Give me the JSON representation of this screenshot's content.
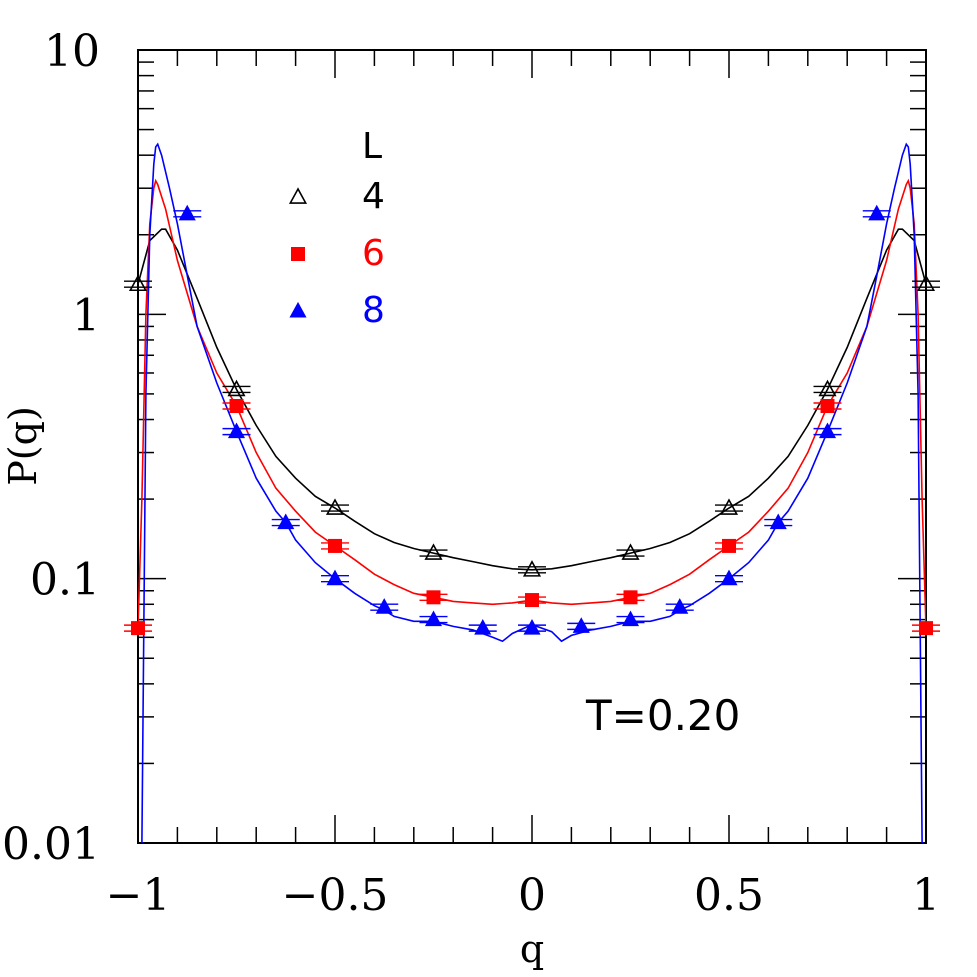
{
  "chart_data": {
    "type": "line",
    "title": "",
    "xlabel": "q",
    "ylabel": "P(q)",
    "xlim": [
      -1,
      1
    ],
    "ylim": [
      0.01,
      10
    ],
    "yscale": "log",
    "x_ticks": [
      {
        "value": -1,
        "label": "−1"
      },
      {
        "value": -0.5,
        "label": "−0.5"
      },
      {
        "value": 0,
        "label": "0"
      },
      {
        "value": 0.5,
        "label": "0.5"
      },
      {
        "value": 1,
        "label": "1"
      }
    ],
    "y_ticks": [
      {
        "value": 0.01,
        "label": "0.01"
      },
      {
        "value": 0.1,
        "label": "0.1"
      },
      {
        "value": 1,
        "label": "1"
      },
      {
        "value": 10,
        "label": "10"
      }
    ],
    "legend": {
      "title": "L",
      "placement": "top-left"
    },
    "annotation": "T=0.20",
    "series": [
      {
        "name": "4",
        "color": "#000000",
        "marker": "open-triangle",
        "points": [
          {
            "x": -1,
            "y": 1.3
          },
          {
            "x": -0.75,
            "y": 0.52
          },
          {
            "x": -0.5,
            "y": 0.185
          },
          {
            "x": -0.25,
            "y": 0.125
          },
          {
            "x": 0,
            "y": 0.108
          },
          {
            "x": 0.25,
            "y": 0.125
          },
          {
            "x": 0.5,
            "y": 0.185
          },
          {
            "x": 0.75,
            "y": 0.52
          },
          {
            "x": 1,
            "y": 1.3
          }
        ],
        "curve": [
          [
            -1,
            1.3
          ],
          [
            -0.97,
            1.9
          ],
          [
            -0.94,
            2.1
          ],
          [
            -0.93,
            2.1
          ],
          [
            -0.9,
            1.75
          ],
          [
            -0.85,
            1.15
          ],
          [
            -0.8,
            0.75
          ],
          [
            -0.75,
            0.52
          ],
          [
            -0.7,
            0.38
          ],
          [
            -0.65,
            0.29
          ],
          [
            -0.6,
            0.24
          ],
          [
            -0.55,
            0.205
          ],
          [
            -0.5,
            0.185
          ],
          [
            -0.45,
            0.165
          ],
          [
            -0.4,
            0.148
          ],
          [
            -0.35,
            0.137
          ],
          [
            -0.3,
            0.13
          ],
          [
            -0.25,
            0.125
          ],
          [
            -0.2,
            0.12
          ],
          [
            -0.15,
            0.116
          ],
          [
            -0.1,
            0.112
          ],
          [
            -0.05,
            0.109
          ],
          [
            0,
            0.108
          ],
          [
            0.05,
            0.109
          ],
          [
            0.1,
            0.112
          ],
          [
            0.15,
            0.116
          ],
          [
            0.2,
            0.12
          ],
          [
            0.25,
            0.125
          ],
          [
            0.3,
            0.13
          ],
          [
            0.35,
            0.137
          ],
          [
            0.4,
            0.148
          ],
          [
            0.45,
            0.165
          ],
          [
            0.5,
            0.185
          ],
          [
            0.55,
            0.205
          ],
          [
            0.6,
            0.24
          ],
          [
            0.65,
            0.29
          ],
          [
            0.7,
            0.38
          ],
          [
            0.75,
            0.52
          ],
          [
            0.8,
            0.75
          ],
          [
            0.85,
            1.15
          ],
          [
            0.9,
            1.75
          ],
          [
            0.93,
            2.1
          ],
          [
            0.94,
            2.1
          ],
          [
            0.97,
            1.9
          ],
          [
            1,
            1.3
          ]
        ]
      },
      {
        "name": "6",
        "color": "#ff0000",
        "marker": "filled-square",
        "points": [
          {
            "x": -1,
            "y": 0.065
          },
          {
            "x": -0.75,
            "y": 0.45
          },
          {
            "x": -0.5,
            "y": 0.133
          },
          {
            "x": -0.25,
            "y": 0.085
          },
          {
            "x": 0,
            "y": 0.083
          },
          {
            "x": 0.25,
            "y": 0.085
          },
          {
            "x": 0.5,
            "y": 0.133
          },
          {
            "x": 0.75,
            "y": 0.45
          },
          {
            "x": 1,
            "y": 0.065
          }
        ],
        "curve": [
          [
            -1,
            0.065
          ],
          [
            -0.99,
            0.2
          ],
          [
            -0.98,
            1.0
          ],
          [
            -0.97,
            2.2
          ],
          [
            -0.96,
            3.0
          ],
          [
            -0.955,
            3.2
          ],
          [
            -0.95,
            3.1
          ],
          [
            -0.93,
            2.5
          ],
          [
            -0.9,
            1.6
          ],
          [
            -0.85,
            0.9
          ],
          [
            -0.8,
            0.6
          ],
          [
            -0.75,
            0.45
          ],
          [
            -0.7,
            0.3
          ],
          [
            -0.65,
            0.22
          ],
          [
            -0.6,
            0.18
          ],
          [
            -0.55,
            0.15
          ],
          [
            -0.5,
            0.133
          ],
          [
            -0.45,
            0.118
          ],
          [
            -0.4,
            0.104
          ],
          [
            -0.35,
            0.095
          ],
          [
            -0.3,
            0.088
          ],
          [
            -0.25,
            0.085
          ],
          [
            -0.2,
            0.082
          ],
          [
            -0.15,
            0.081
          ],
          [
            -0.1,
            0.08
          ],
          [
            -0.05,
            0.081
          ],
          [
            0,
            0.083
          ],
          [
            0.05,
            0.081
          ],
          [
            0.1,
            0.08
          ],
          [
            0.15,
            0.081
          ],
          [
            0.2,
            0.082
          ],
          [
            0.25,
            0.085
          ],
          [
            0.3,
            0.088
          ],
          [
            0.35,
            0.095
          ],
          [
            0.4,
            0.104
          ],
          [
            0.45,
            0.118
          ],
          [
            0.5,
            0.133
          ],
          [
            0.55,
            0.15
          ],
          [
            0.6,
            0.18
          ],
          [
            0.65,
            0.22
          ],
          [
            0.7,
            0.3
          ],
          [
            0.75,
            0.45
          ],
          [
            0.8,
            0.6
          ],
          [
            0.85,
            0.9
          ],
          [
            0.9,
            1.6
          ],
          [
            0.93,
            2.5
          ],
          [
            0.95,
            3.1
          ],
          [
            0.955,
            3.2
          ],
          [
            0.96,
            3.0
          ],
          [
            0.97,
            2.2
          ],
          [
            0.98,
            1.0
          ],
          [
            0.99,
            0.2
          ],
          [
            1,
            0.065
          ]
        ]
      },
      {
        "name": "8",
        "color": "#0000ff",
        "marker": "filled-triangle",
        "points": [
          {
            "x": -0.875,
            "y": 2.4
          },
          {
            "x": -0.75,
            "y": 0.36
          },
          {
            "x": -0.625,
            "y": 0.163
          },
          {
            "x": -0.5,
            "y": 0.1
          },
          {
            "x": -0.375,
            "y": 0.078
          },
          {
            "x": -0.25,
            "y": 0.07
          },
          {
            "x": -0.125,
            "y": 0.065
          },
          {
            "x": 0,
            "y": 0.065
          },
          {
            "x": 0.125,
            "y": 0.066
          },
          {
            "x": 0.25,
            "y": 0.07
          },
          {
            "x": 0.375,
            "y": 0.078
          },
          {
            "x": 0.5,
            "y": 0.1
          },
          {
            "x": 0.625,
            "y": 0.163
          },
          {
            "x": 0.75,
            "y": 0.36
          },
          {
            "x": 0.875,
            "y": 2.4
          }
        ],
        "curve": [
          [
            -0.99,
            0.01
          ],
          [
            -0.98,
            0.5
          ],
          [
            -0.97,
            2.0
          ],
          [
            -0.96,
            3.7
          ],
          [
            -0.955,
            4.3
          ],
          [
            -0.95,
            4.4
          ],
          [
            -0.94,
            4.0
          ],
          [
            -0.92,
            3.0
          ],
          [
            -0.9,
            2.2
          ],
          [
            -0.875,
            1.4
          ],
          [
            -0.85,
            0.9
          ],
          [
            -0.8,
            0.55
          ],
          [
            -0.75,
            0.36
          ],
          [
            -0.7,
            0.24
          ],
          [
            -0.65,
            0.18
          ],
          [
            -0.625,
            0.163
          ],
          [
            -0.6,
            0.14
          ],
          [
            -0.55,
            0.115
          ],
          [
            -0.5,
            0.1
          ],
          [
            -0.45,
            0.088
          ],
          [
            -0.4,
            0.079
          ],
          [
            -0.375,
            0.076
          ],
          [
            -0.35,
            0.072
          ],
          [
            -0.3,
            0.069
          ],
          [
            -0.25,
            0.069
          ],
          [
            -0.2,
            0.066
          ],
          [
            -0.15,
            0.064
          ],
          [
            -0.1,
            0.06
          ],
          [
            -0.075,
            0.058
          ],
          [
            -0.05,
            0.062
          ],
          [
            0,
            0.067
          ],
          [
            0.05,
            0.063
          ],
          [
            0.075,
            0.058
          ],
          [
            0.1,
            0.061
          ],
          [
            0.15,
            0.064
          ],
          [
            0.2,
            0.066
          ],
          [
            0.25,
            0.069
          ],
          [
            0.3,
            0.069
          ],
          [
            0.35,
            0.072
          ],
          [
            0.375,
            0.076
          ],
          [
            0.4,
            0.079
          ],
          [
            0.45,
            0.088
          ],
          [
            0.5,
            0.1
          ],
          [
            0.55,
            0.115
          ],
          [
            0.6,
            0.14
          ],
          [
            0.625,
            0.163
          ],
          [
            0.65,
            0.18
          ],
          [
            0.7,
            0.24
          ],
          [
            0.75,
            0.36
          ],
          [
            0.8,
            0.55
          ],
          [
            0.85,
            0.9
          ],
          [
            0.875,
            1.4
          ],
          [
            0.9,
            2.2
          ],
          [
            0.92,
            3.0
          ],
          [
            0.94,
            4.0
          ],
          [
            0.95,
            4.4
          ],
          [
            0.955,
            4.3
          ],
          [
            0.96,
            3.7
          ],
          [
            0.97,
            2.0
          ],
          [
            0.98,
            0.5
          ],
          [
            0.99,
            0.01
          ]
        ]
      }
    ]
  }
}
